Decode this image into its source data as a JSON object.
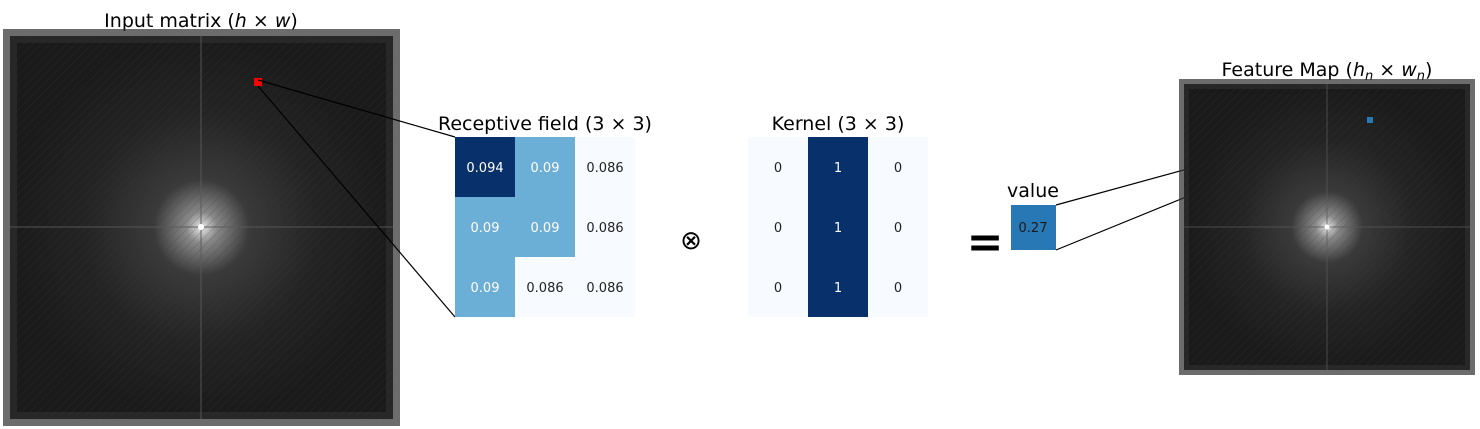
{
  "input_matrix": {
    "title": "Input matrix (",
    "title_math": "h × w",
    "title_end": ")"
  },
  "receptive_field": {
    "title": "Receptive field (3 × 3)",
    "values": [
      [
        "0.094",
        "0.09",
        "0.086"
      ],
      [
        "0.09",
        "0.09",
        "0.086"
      ],
      [
        "0.09",
        "0.086",
        "0.086"
      ]
    ],
    "levels": [
      [
        1.0,
        0.5,
        0.0
      ],
      [
        0.5,
        0.5,
        0.0
      ],
      [
        0.5,
        0.0,
        0.0
      ]
    ]
  },
  "operator": {
    "convolution_symbol": "⊗",
    "equals_symbol": "="
  },
  "kernel": {
    "title": "Kernel (3 × 3)",
    "values": [
      [
        "0",
        "1",
        "0"
      ],
      [
        "0",
        "1",
        "0"
      ],
      [
        "0",
        "1",
        "0"
      ]
    ],
    "levels": [
      [
        0,
        1,
        0
      ],
      [
        0,
        1,
        0
      ],
      [
        0,
        1,
        0
      ]
    ]
  },
  "output_value": {
    "label": "value",
    "value": "0.27",
    "color": "#2878b5"
  },
  "feature_map": {
    "title": "Feature Map (",
    "title_math": "h",
    "title_sub1": "n",
    "title_times": " × ",
    "title_math2": "w",
    "title_sub2": "n",
    "title_end": ")"
  },
  "colors": {
    "dark_blue": "#08306b",
    "mid_blue": "#6baed6",
    "light_blue": "#f7fbff",
    "highlight_red": "#ff0000",
    "highlight_blue": "#2878b5"
  }
}
